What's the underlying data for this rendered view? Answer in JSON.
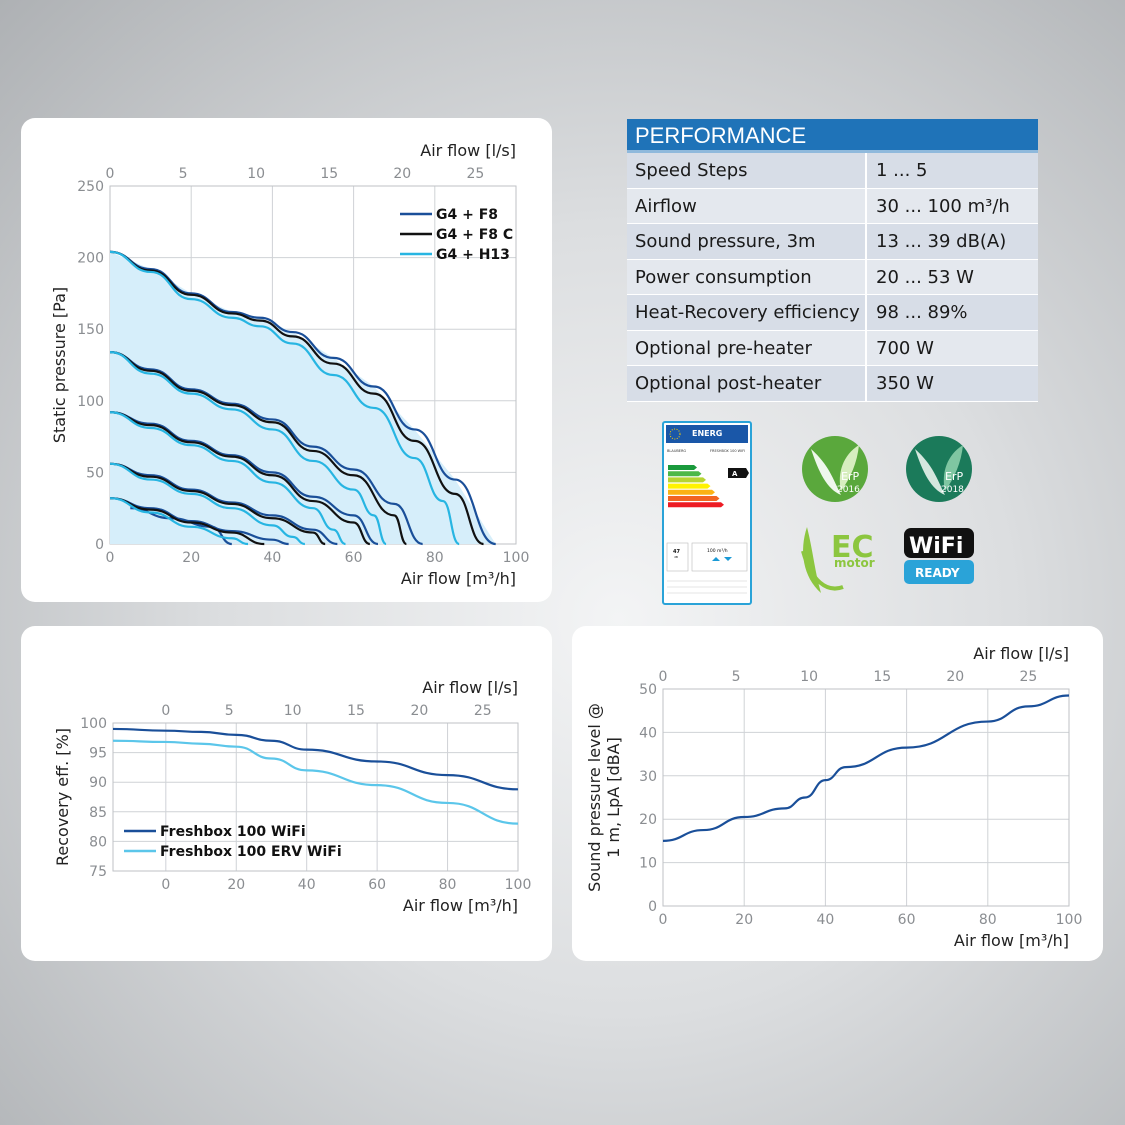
{
  "performance": {
    "title": "PERFORMANCE",
    "rows": [
      {
        "label": "Speed Steps",
        "value": "1 ... 5"
      },
      {
        "label": "Airflow",
        "value": "30 ... 100 m³/h"
      },
      {
        "label": "Sound pressure, 3m",
        "value": "13 ... 39 dB(A)"
      },
      {
        "label": "Power consumption",
        "value": "20 ... 53 W"
      },
      {
        "label": "Heat-Recovery efficiency",
        "value": "98 ... 89%"
      },
      {
        "label": "Optional pre-heater",
        "value": "700 W"
      },
      {
        "label": "Optional post-heater",
        "value": "350 W"
      }
    ]
  },
  "energy_label": {
    "header": "ENERG",
    "brand": "BLAUBERG",
    "model": "FRESHBOX 100 WIFI",
    "class": "A",
    "sound": "47",
    "sound_unit": "dB",
    "airflow": "100 m³/h",
    "colors": [
      "#1a9a3c",
      "#4cb848",
      "#b6d433",
      "#fff200",
      "#fbb315",
      "#f26522",
      "#ed1c24"
    ]
  },
  "badges": {
    "erp2016": {
      "text": "ErP",
      "year": "2016",
      "color": "#5aa83c"
    },
    "erp2018": {
      "text": "ErP",
      "year": "2018",
      "color": "#1b7a5a"
    },
    "ec_motor": {
      "big": "EC",
      "small": "motor",
      "color": "#8cc63f"
    },
    "wifi": {
      "text": "WiFi",
      "ready": "READY",
      "color": "#2aa3d8"
    }
  },
  "chart_data": [
    {
      "type": "line",
      "xlabel": "Air flow [m³/h]",
      "x2label": "Air flow [l/s]",
      "ylabel": "Static pressure [Pa]",
      "xlim": [
        0,
        100
      ],
      "x2lim": [
        0,
        27.78
      ],
      "ylim": [
        0,
        250
      ],
      "xticks": [
        0,
        20,
        40,
        60,
        80,
        100
      ],
      "x2ticks": [
        0,
        5,
        10,
        15,
        20,
        25
      ],
      "yticks": [
        0,
        50,
        100,
        150,
        200,
        250
      ],
      "grid": true,
      "legend_position": "top-right",
      "series": [
        {
          "name": "G4 + F8",
          "color": "#1a4f99",
          "curves": [
            [
              [
                0,
                204
              ],
              [
                10,
                192
              ],
              [
                20,
                175
              ],
              [
                30,
                162
              ],
              [
                37,
                158
              ],
              [
                45,
                148
              ],
              [
                55,
                130
              ],
              [
                65,
                110
              ],
              [
                75,
                80
              ],
              [
                85,
                45
              ],
              [
                95,
                0
              ]
            ],
            [
              [
                0,
                134
              ],
              [
                10,
                122
              ],
              [
                20,
                108
              ],
              [
                30,
                98
              ],
              [
                40,
                87
              ],
              [
                50,
                68
              ],
              [
                60,
                52
              ],
              [
                70,
                28
              ],
              [
                77,
                0
              ]
            ],
            [
              [
                0,
                92
              ],
              [
                10,
                84
              ],
              [
                20,
                72
              ],
              [
                30,
                62
              ],
              [
                40,
                50
              ],
              [
                50,
                33
              ],
              [
                60,
                20
              ],
              [
                66,
                0
              ]
            ],
            [
              [
                0,
                56
              ],
              [
                10,
                48
              ],
              [
                20,
                38
              ],
              [
                30,
                29
              ],
              [
                40,
                20
              ],
              [
                50,
                10
              ],
              [
                56,
                0
              ]
            ],
            [
              [
                0,
                32
              ],
              [
                10,
                25
              ],
              [
                20,
                16
              ],
              [
                30,
                9
              ],
              [
                40,
                3
              ],
              [
                44,
                0
              ]
            ],
            [
              [
                5,
                25
              ],
              [
                15,
                18
              ],
              [
                25,
                12
              ],
              [
                30,
                0
              ]
            ]
          ]
        },
        {
          "name": "G4 + F8 C",
          "color": "#111111",
          "curves": [
            [
              [
                0,
                204
              ],
              [
                10,
                191
              ],
              [
                20,
                174
              ],
              [
                30,
                161
              ],
              [
                37,
                156
              ],
              [
                45,
                145
              ],
              [
                55,
                126
              ],
              [
                65,
                105
              ],
              [
                75,
                72
              ],
              [
                85,
                35
              ],
              [
                92,
                0
              ]
            ],
            [
              [
                0,
                134
              ],
              [
                10,
                121
              ],
              [
                20,
                107
              ],
              [
                30,
                97
              ],
              [
                40,
                85
              ],
              [
                50,
                65
              ],
              [
                60,
                48
              ],
              [
                70,
                20
              ],
              [
                73,
                0
              ]
            ],
            [
              [
                0,
                92
              ],
              [
                10,
                83
              ],
              [
                20,
                71
              ],
              [
                30,
                61
              ],
              [
                40,
                48
              ],
              [
                50,
                30
              ],
              [
                60,
                15
              ],
              [
                64,
                0
              ]
            ],
            [
              [
                0,
                56
              ],
              [
                10,
                47
              ],
              [
                20,
                37
              ],
              [
                30,
                28
              ],
              [
                40,
                18
              ],
              [
                50,
                8
              ],
              [
                53,
                0
              ]
            ],
            [
              [
                0,
                32
              ],
              [
                10,
                24
              ],
              [
                20,
                15
              ],
              [
                30,
                8
              ],
              [
                38,
                0
              ]
            ]
          ]
        },
        {
          "name": "G4 + H13",
          "color": "#27b5e2",
          "curves": [
            [
              [
                0,
                204
              ],
              [
                10,
                190
              ],
              [
                20,
                171
              ],
              [
                30,
                158
              ],
              [
                37,
                152
              ],
              [
                45,
                140
              ],
              [
                55,
                118
              ],
              [
                65,
                95
              ],
              [
                75,
                60
              ],
              [
                82,
                30
              ],
              [
                86,
                0
              ]
            ],
            [
              [
                0,
                134
              ],
              [
                10,
                119
              ],
              [
                20,
                105
              ],
              [
                30,
                94
              ],
              [
                40,
                80
              ],
              [
                50,
                58
              ],
              [
                60,
                38
              ],
              [
                65,
                20
              ],
              [
                68,
                0
              ]
            ],
            [
              [
                0,
                92
              ],
              [
                10,
                81
              ],
              [
                20,
                69
              ],
              [
                30,
                58
              ],
              [
                40,
                43
              ],
              [
                50,
                25
              ],
              [
                55,
                10
              ],
              [
                58,
                0
              ]
            ],
            [
              [
                0,
                56
              ],
              [
                10,
                45
              ],
              [
                20,
                35
              ],
              [
                30,
                25
              ],
              [
                40,
                13
              ],
              [
                45,
                5
              ],
              [
                48,
                0
              ]
            ],
            [
              [
                0,
                32
              ],
              [
                10,
                22
              ],
              [
                20,
                12
              ],
              [
                30,
                4
              ],
              [
                34,
                0
              ]
            ]
          ]
        }
      ]
    },
    {
      "type": "line",
      "xlabel": "Air flow [m³/h]",
      "x2label": "Air flow [l/s]",
      "ylabel": "Recovery eff. [%]",
      "xlim": [
        -15,
        100
      ],
      "x2lim": [
        0,
        27.78
      ],
      "ylim": [
        75,
        100
      ],
      "xticks": [
        0,
        20,
        40,
        60,
        80,
        100
      ],
      "x2ticks": [
        0,
        5,
        10,
        15,
        20,
        25
      ],
      "yticks": [
        75,
        80,
        85,
        90,
        95,
        100
      ],
      "grid": true,
      "legend_position": "bottom-left",
      "series": [
        {
          "name": "Freshbox 100 WiFi",
          "color": "#1a4f99",
          "points": [
            [
              -15,
              99
            ],
            [
              0,
              98.7
            ],
            [
              10,
              98.5
            ],
            [
              20,
              98
            ],
            [
              30,
              97
            ],
            [
              40,
              95.5
            ],
            [
              60,
              93.5
            ],
            [
              80,
              91.2
            ],
            [
              100,
              88.8
            ]
          ]
        },
        {
          "name": "Freshbox 100 ERV WiFi",
          "color": "#5bc6ea",
          "points": [
            [
              -15,
              97
            ],
            [
              0,
              96.8
            ],
            [
              10,
              96.5
            ],
            [
              20,
              96
            ],
            [
              30,
              94
            ],
            [
              40,
              92
            ],
            [
              60,
              89.5
            ],
            [
              80,
              86.5
            ],
            [
              100,
              83
            ]
          ]
        }
      ]
    },
    {
      "type": "line",
      "xlabel": "Air flow [m³/h]",
      "x2label": "Air flow [l/s]",
      "ylabel": "Sound pressure level @ 1 m, LpA [dBA]",
      "xlim": [
        0,
        100
      ],
      "x2lim": [
        0,
        27.78
      ],
      "ylim": [
        0,
        50
      ],
      "xticks": [
        0,
        20,
        40,
        60,
        80,
        100
      ],
      "x2ticks": [
        0,
        5,
        10,
        15,
        20,
        25
      ],
      "yticks": [
        0,
        10,
        20,
        30,
        40,
        50
      ],
      "grid": true,
      "series": [
        {
          "name": "",
          "color": "#1a4f99",
          "points": [
            [
              0,
              15
            ],
            [
              10,
              17.5
            ],
            [
              20,
              20.5
            ],
            [
              30,
              22.5
            ],
            [
              35,
              25
            ],
            [
              40,
              29
            ],
            [
              45,
              32
            ],
            [
              60,
              36.5
            ],
            [
              80,
              42.5
            ],
            [
              90,
              46
            ],
            [
              100,
              48.5
            ]
          ]
        }
      ]
    }
  ]
}
